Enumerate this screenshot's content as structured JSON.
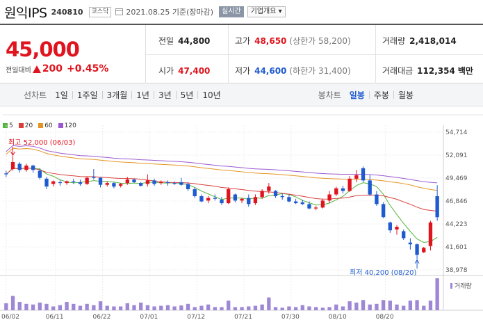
{
  "header": {
    "name": "원익IPS",
    "code": "240810",
    "market": "코스닥",
    "date": "2021.08.25 기준(장마감)",
    "realtime": "실시간",
    "company": "기업개요 ▾"
  },
  "quote": {
    "price": "45,000",
    "change_label": "전일대비",
    "change": "200",
    "change_pct": "+0.45%",
    "prev_label": "전일",
    "prev": "44,800",
    "high_label": "고가",
    "high": "48,650",
    "upper_limit": "(상한가 58,200)",
    "volume_label": "거래량",
    "volume": "2,418,014",
    "open_label": "시가",
    "open": "47,400",
    "low_label": "저가",
    "low": "44,600",
    "lower_limit": "(하한가 31,400)",
    "amount_label": "거래대금",
    "amount": "112,354",
    "amount_unit": "백만"
  },
  "periods": {
    "label": "선차트",
    "items": [
      "1일",
      "1주일",
      "3개월",
      "1년",
      "3년",
      "5년",
      "10년"
    ],
    "candle_label": "봉차트",
    "candle_items": [
      "일봉",
      "주봉",
      "월봉"
    ],
    "candle_selected": 0
  },
  "colors": {
    "up": "#e0141e",
    "down": "#1f5bd0",
    "ma5": "#55b43f",
    "ma20": "#d9403a",
    "ma60": "#e59422",
    "ma120": "#9b59d0",
    "volume": "#9e88d6"
  },
  "chart_data": {
    "type": "candlestick",
    "legend": [
      {
        "name": "5",
        "color": "#55b43f"
      },
      {
        "name": "20",
        "color": "#d9403a"
      },
      {
        "name": "60",
        "color": "#e59422"
      },
      {
        "name": "120",
        "color": "#9b59d0"
      }
    ],
    "y_ticks": [
      "54,714",
      "52,091",
      "49,469",
      "46,846",
      "44,223",
      "41,601",
      "38,978"
    ],
    "ylim": [
      38978,
      54714
    ],
    "x_ticks": [
      "06/02",
      "06/11",
      "06/22",
      "07/01",
      "07/12",
      "07/21",
      "07/30",
      "08/10",
      "08/20"
    ],
    "high_annot": "최고 52,000 (06/03)",
    "low_annot": "최저 40,200 (08/20)",
    "volume_label": "거래량",
    "candles": [
      [
        50000,
        50300,
        49600,
        49900
      ],
      [
        50500,
        52000,
        50300,
        51300
      ],
      [
        51100,
        51300,
        50100,
        50400
      ],
      [
        50400,
        51100,
        50200,
        50900
      ],
      [
        50900,
        51000,
        50100,
        50400
      ],
      [
        50300,
        50600,
        49300,
        49500
      ],
      [
        49400,
        49600,
        48200,
        48500
      ],
      [
        48800,
        49200,
        48500,
        49100
      ],
      [
        49000,
        49300,
        48600,
        48900
      ],
      [
        48900,
        49200,
        48700,
        49100
      ],
      [
        49100,
        49400,
        48800,
        49000
      ],
      [
        49000,
        49300,
        48600,
        48800
      ],
      [
        48800,
        49600,
        48700,
        49500
      ],
      [
        49600,
        50500,
        49300,
        49500
      ],
      [
        49500,
        49600,
        48400,
        48700
      ],
      [
        48700,
        49100,
        48500,
        48900
      ],
      [
        48900,
        49000,
        48300,
        48500
      ],
      [
        48600,
        48900,
        48400,
        48800
      ],
      [
        48900,
        49600,
        48700,
        49300
      ],
      [
        49300,
        49400,
        48900,
        49000
      ],
      [
        48900,
        49000,
        48500,
        48600
      ],
      [
        48800,
        49900,
        48500,
        49200
      ],
      [
        49200,
        49400,
        48600,
        48800
      ],
      [
        48900,
        49200,
        48700,
        49000
      ],
      [
        49000,
        49200,
        48600,
        48900
      ],
      [
        48900,
        49100,
        48700,
        48800
      ],
      [
        49000,
        49500,
        48600,
        48700
      ],
      [
        48800,
        49000,
        48000,
        48200
      ],
      [
        48200,
        48400,
        47200,
        47400
      ],
      [
        47400,
        47600,
        46700,
        46800
      ],
      [
        46900,
        47400,
        46600,
        47200
      ],
      [
        47200,
        47600,
        46900,
        47100
      ],
      [
        47000,
        47300,
        46400,
        46600
      ],
      [
        46600,
        48400,
        46500,
        48200
      ],
      [
        47600,
        47700,
        46700,
        46900
      ],
      [
        46900,
        47200,
        46600,
        47100
      ],
      [
        47200,
        47600,
        46200,
        46500
      ],
      [
        46600,
        47600,
        46400,
        47300
      ],
      [
        47300,
        48200,
        47100,
        48000
      ],
      [
        48000,
        48900,
        47700,
        48500
      ],
      [
        48000,
        48100,
        47200,
        47400
      ],
      [
        47400,
        47700,
        47000,
        47300
      ],
      [
        47300,
        47600,
        46700,
        46800
      ],
      [
        46800,
        47100,
        46500,
        46600
      ],
      [
        46700,
        47000,
        46400,
        46500
      ],
      [
        46500,
        46800,
        45900,
        46000
      ],
      [
        46000,
        46300,
        45800,
        46100
      ],
      [
        46100,
        47100,
        46000,
        46900
      ],
      [
        46900,
        48000,
        46600,
        47600
      ],
      [
        47600,
        48500,
        47400,
        48300
      ],
      [
        48300,
        48600,
        47700,
        48000
      ],
      [
        48000,
        49700,
        47900,
        49400
      ],
      [
        49400,
        50400,
        49000,
        49800
      ],
      [
        50600,
        50800,
        49000,
        49200
      ],
      [
        49200,
        49800,
        47400,
        47600
      ],
      [
        47600,
        48000,
        46300,
        46500
      ],
      [
        46500,
        46700,
        44900,
        45000
      ],
      [
        44400,
        44500,
        43200,
        43500
      ],
      [
        43600,
        44100,
        43000,
        43900
      ],
      [
        43400,
        43600,
        42400,
        42600
      ],
      [
        42100,
        42600,
        41300,
        41900
      ],
      [
        41900,
        42000,
        40200,
        40700
      ],
      [
        41000,
        41600,
        40900,
        41500
      ],
      [
        41700,
        44600,
        41200,
        44400
      ],
      [
        47400,
        48650,
        44600,
        45000
      ]
    ],
    "volume": [
      0.22,
      0.45,
      0.26,
      0.2,
      0.18,
      0.24,
      0.2,
      0.12,
      0.16,
      0.26,
      0.2,
      0.14,
      0.2,
      0.16,
      0.28,
      0.14,
      0.12,
      0.12,
      0.22,
      0.16,
      0.24,
      0.16,
      0.12,
      0.14,
      0.16,
      0.12,
      0.15,
      0.2,
      0.1,
      0.14,
      0.18,
      0.1,
      0.1,
      0.3,
      0.1,
      0.1,
      0.12,
      0.14,
      0.18,
      0.4,
      0.1,
      0.08,
      0.12,
      0.1,
      0.16,
      0.12,
      0.1,
      0.08,
      0.1,
      0.18,
      0.12,
      0.28,
      0.24,
      0.32,
      0.18,
      0.2,
      0.32,
      0.3,
      0.18,
      0.14,
      0.3,
      0.32,
      0.14,
      0.3,
      1.0
    ]
  }
}
